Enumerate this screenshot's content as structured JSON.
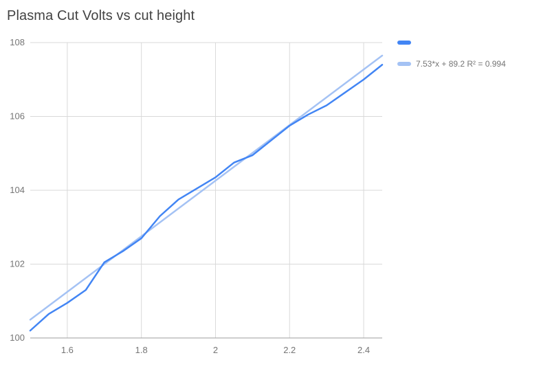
{
  "chart_data": {
    "type": "line",
    "title": "Plasma Cut Volts vs cut height",
    "xlabel": "",
    "ylabel": "",
    "xlim": [
      1.5,
      2.45
    ],
    "ylim": [
      100,
      108
    ],
    "x_ticks": [
      1.6,
      1.8,
      2,
      2.2,
      2.4
    ],
    "x_tick_labels": [
      "1.6",
      "1.8",
      "2",
      "2.2",
      "2.4"
    ],
    "y_ticks": [
      100,
      102,
      104,
      106,
      108
    ],
    "y_tick_labels": [
      "100",
      "102",
      "104",
      "106",
      "108"
    ],
    "grid": true,
    "grid_color": "#d9d9d9",
    "axis_line_color": "#9e9e9e",
    "tick_label_color": "#757575",
    "legend_position": "top-right",
    "x": [
      1.5,
      1.55,
      1.6,
      1.65,
      1.7,
      1.75,
      1.8,
      1.85,
      1.9,
      1.95,
      2.0,
      2.05,
      2.1,
      2.15,
      2.2,
      2.25,
      2.3,
      2.35,
      2.4,
      2.45
    ],
    "series": [
      {
        "name": "",
        "color": "#4285f4",
        "values": [
          100.2,
          100.65,
          100.95,
          101.3,
          102.05,
          102.35,
          102.7,
          103.3,
          103.75,
          104.05,
          104.35,
          104.75,
          104.95,
          105.35,
          105.75,
          106.05,
          106.3,
          106.65,
          107.0,
          107.4
        ]
      }
    ],
    "trendline": {
      "label": "7.53*x + 89.2 R² = 0.994",
      "slope": 7.53,
      "intercept": 89.2,
      "r_squared": 0.994,
      "color": "#a4c2f4"
    }
  }
}
